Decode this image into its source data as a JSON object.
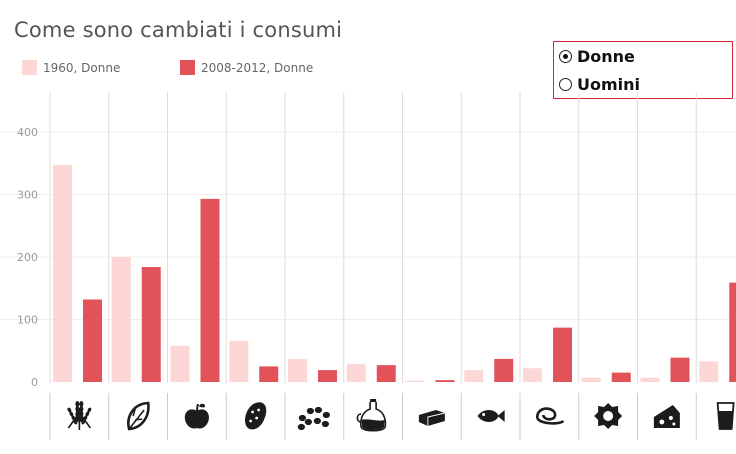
{
  "chart_data": {
    "type": "bar",
    "title": "Come sono cambiati i consumi",
    "ylim": [
      0,
      430
    ],
    "yticks": [
      0,
      100,
      200,
      300,
      400
    ],
    "grid": true,
    "legend_position": "top-left",
    "categories": [
      "cereal-icon",
      "leafy-vegetable-icon",
      "apple-icon",
      "potato-icon",
      "legumes-icon",
      "oil-bottle-icon",
      "cheese-icon",
      "fish-icon",
      "cured-meat-icon",
      "egg-icon",
      "cheese-wedge-icon",
      "milk-glass-icon"
    ],
    "series": [
      {
        "name": "1960, Donne",
        "color": "#fdd6d6",
        "values": [
          347,
          200,
          58,
          66,
          37,
          29,
          2,
          19,
          22,
          7,
          7,
          33
        ]
      },
      {
        "name": "2008-2012, Donne",
        "color": "#e25359",
        "values": [
          132,
          184,
          293,
          25,
          19,
          27,
          3,
          37,
          87,
          15,
          39,
          159
        ]
      }
    ]
  },
  "legend": {
    "item1": "1960, Donne",
    "item2": "2008-2012, Donne"
  },
  "selector": {
    "options": [
      "Donne",
      "Uomini"
    ],
    "selected": "Donne"
  }
}
